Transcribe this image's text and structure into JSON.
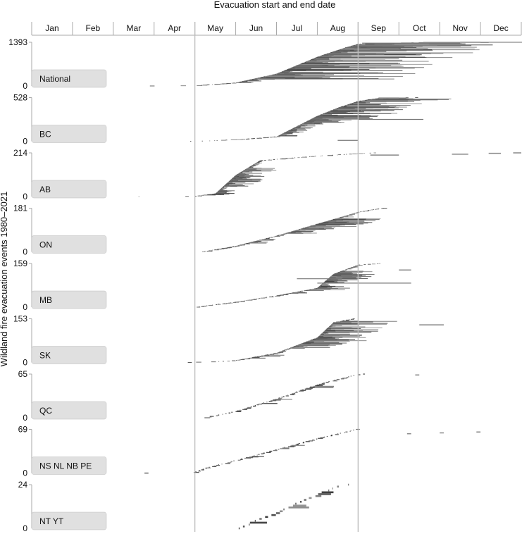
{
  "chart_data": {
    "type": "bar",
    "title": "Evacuation start and end date",
    "ylabel": "Wildland fire evacuation events 1980–2021",
    "months": [
      "Jan",
      "Feb",
      "Mar",
      "Apr",
      "May",
      "Jun",
      "Jul",
      "Aug",
      "Sep",
      "Oct",
      "Nov",
      "Dec"
    ],
    "reference_lines_month_boundaries": [
      4,
      8
    ],
    "panels": [
      {
        "name": "National",
        "ymax": 1393,
        "ymin": 0,
        "bursts": [
          [
            2.7,
            3.0,
            0.5
          ],
          [
            3.5,
            4.0,
            0.5
          ],
          [
            4.0,
            5.0,
            5
          ],
          [
            5.0,
            6.0,
            16
          ],
          [
            6.0,
            7.0,
            30
          ],
          [
            7.0,
            7.7,
            24
          ],
          [
            7.7,
            8.0,
            20
          ],
          [
            8.0,
            8.5,
            2
          ],
          [
            8.5,
            9.6,
            2
          ],
          [
            10.5,
            10.5,
            0.1
          ]
        ],
        "fan": [
          [
            5.2,
            0.25,
            0.5
          ],
          [
            6.0,
            0.5,
            0.8
          ],
          [
            6.8,
            1.0,
            1.6
          ],
          [
            7.4,
            1.5,
            2.2
          ],
          [
            8.0,
            2.6,
            3.5
          ]
        ],
        "outliers": [
          [
            8.0,
            11.3,
            0.94
          ],
          [
            8.1,
            10.5,
            0.98
          ],
          [
            7.9,
            9.6,
            0.82
          ]
        ],
        "isolated": [
          [
            9.6,
            10.5,
            0.995
          ],
          [
            11.0,
            11.2,
            0.997
          ],
          [
            10.5,
            11.0,
            0.999
          ]
        ]
      },
      {
        "name": "BC",
        "ymax": 528,
        "ymin": 0,
        "bursts": [
          [
            3.5,
            4.0,
            0.5
          ],
          [
            4.1,
            5.0,
            2
          ],
          [
            5.0,
            6.0,
            4
          ],
          [
            6.0,
            7.0,
            28
          ],
          [
            7.0,
            7.5,
            22
          ],
          [
            7.5,
            8.0,
            18
          ],
          [
            8.0,
            8.5,
            8
          ],
          [
            8.5,
            9.5,
            1
          ]
        ],
        "fan": [
          [
            6.2,
            0.25,
            0.5
          ],
          [
            7.0,
            0.5,
            1.0
          ],
          [
            7.6,
            0.8,
            1.6
          ],
          [
            8.0,
            0.9,
            2.0
          ]
        ],
        "outliers": [
          [
            8.0,
            9.6,
            0.5
          ],
          [
            7.5,
            8.0,
            0.02
          ]
        ],
        "isolated": [
          [
            8.5,
            9.0,
            0.99
          ]
        ]
      },
      {
        "name": "AB",
        "ymax": 214,
        "ymin": 0,
        "bursts": [
          [
            2.5,
            2.7,
            0.3
          ],
          [
            3.6,
            4.0,
            0.5
          ],
          [
            4.0,
            4.5,
            6
          ],
          [
            4.5,
            5.0,
            45
          ],
          [
            5.0,
            5.6,
            30
          ],
          [
            5.6,
            7.0,
            4
          ],
          [
            7.0,
            8.0,
            3
          ],
          [
            8.0,
            8.5,
            2
          ]
        ],
        "fan": [
          [
            4.4,
            0.2,
            0.5
          ],
          [
            5.0,
            0.3,
            0.8
          ]
        ],
        "outliers": [],
        "isolated": [
          [
            8.3,
            9.0,
            0.95
          ],
          [
            10.3,
            10.7,
            0.97
          ],
          [
            11.2,
            11.5,
            0.99
          ],
          [
            11.8,
            12.0,
            1.0
          ]
        ]
      },
      {
        "name": "ON",
        "ymax": 181,
        "ymin": 0,
        "bursts": [
          [
            4.0,
            4.2,
            0.3
          ],
          [
            4.2,
            5.0,
            2
          ],
          [
            5.0,
            6.0,
            3
          ],
          [
            6.0,
            7.0,
            3.5
          ],
          [
            7.0,
            8.0,
            3.5
          ],
          [
            8.0,
            8.6,
            2
          ]
        ],
        "fan": [
          [
            5.5,
            0.2,
            0.5
          ],
          [
            6.5,
            0.3,
            0.8
          ],
          [
            7.2,
            0.4,
            1.2
          ]
        ],
        "outliers": [],
        "isolated": []
      },
      {
        "name": "MB",
        "ymax": 159,
        "ymin": 0,
        "bursts": [
          [
            4.0,
            4.3,
            2
          ],
          [
            4.3,
            5.0,
            2
          ],
          [
            5.0,
            6.0,
            2.5
          ],
          [
            6.0,
            7.0,
            3
          ],
          [
            7.0,
            7.4,
            14
          ],
          [
            7.4,
            8.0,
            6
          ],
          [
            8.0,
            8.6,
            1
          ]
        ],
        "fan": [
          [
            6.5,
            0.2,
            0.5
          ],
          [
            7.2,
            0.4,
            1.0
          ]
        ],
        "outliers": [
          [
            7.0,
            9.3,
            0.55
          ],
          [
            6.5,
            7.6,
            0.65
          ]
        ],
        "isolated": [
          [
            9.0,
            9.3,
            0.85
          ]
        ]
      },
      {
        "name": "SK",
        "ymax": 153,
        "ymin": 0,
        "bursts": [
          [
            3.5,
            4.2,
            0.4
          ],
          [
            4.4,
            5.0,
            1
          ],
          [
            5.0,
            6.0,
            3
          ],
          [
            6.0,
            7.0,
            6
          ],
          [
            7.0,
            7.4,
            15
          ],
          [
            7.4,
            7.9,
            3
          ]
        ],
        "fan": [
          [
            5.5,
            0.25,
            0.6
          ],
          [
            6.7,
            0.4,
            1.2
          ],
          [
            7.2,
            0.4,
            1.4
          ]
        ],
        "outliers": [],
        "isolated": [
          [
            9.5,
            10.1,
            0.86
          ]
        ]
      },
      {
        "name": "QC",
        "ymax": 65,
        "ymin": 0,
        "bursts": [
          [
            4.2,
            5.0,
            1
          ],
          [
            5.0,
            6.0,
            1.4
          ],
          [
            6.0,
            7.0,
            1.6
          ],
          [
            7.0,
            8.0,
            1.2
          ],
          [
            8.0,
            8.2,
            0.3
          ]
        ],
        "fan": [
          [
            5.8,
            0.2,
            0.5
          ],
          [
            6.8,
            0.2,
            0.6
          ]
        ],
        "outliers": [],
        "isolated": [
          [
            9.4,
            9.5,
            0.98
          ]
        ]
      },
      {
        "name": "NS NL NB PE",
        "ymax": 69,
        "ymin": 0,
        "bursts": [
          [
            2.7,
            3.0,
            0.3
          ],
          [
            3.8,
            4.0,
            0.5
          ],
          [
            4.0,
            4.3,
            2
          ],
          [
            4.3,
            5.0,
            1.4
          ],
          [
            5.0,
            6.0,
            1.5
          ],
          [
            6.0,
            7.0,
            1.5
          ],
          [
            7.0,
            8.0,
            1.3
          ]
        ],
        "fan": [
          [
            5.2,
            0.2,
            0.4
          ],
          [
            6.2,
            0.2,
            0.5
          ]
        ],
        "outliers": [],
        "isolated": [
          [
            9.2,
            9.3,
            0.9
          ],
          [
            10.0,
            10.1,
            0.92
          ],
          [
            10.9,
            11.0,
            0.94
          ]
        ]
      },
      {
        "name": "NT YT",
        "ymax": 24,
        "ymin": 0,
        "bursts": [
          [
            5.0,
            6.0,
            1.5
          ],
          [
            6.0,
            7.0,
            1.5
          ],
          [
            7.0,
            7.4,
            1.5
          ],
          [
            7.4,
            8.0,
            0.5
          ]
        ],
        "fan": [
          [
            5.5,
            0.3,
            0.4
          ],
          [
            6.5,
            0.3,
            0.5
          ],
          [
            7.2,
            0.3,
            0.5
          ]
        ],
        "outliers": [],
        "isolated": []
      }
    ]
  }
}
